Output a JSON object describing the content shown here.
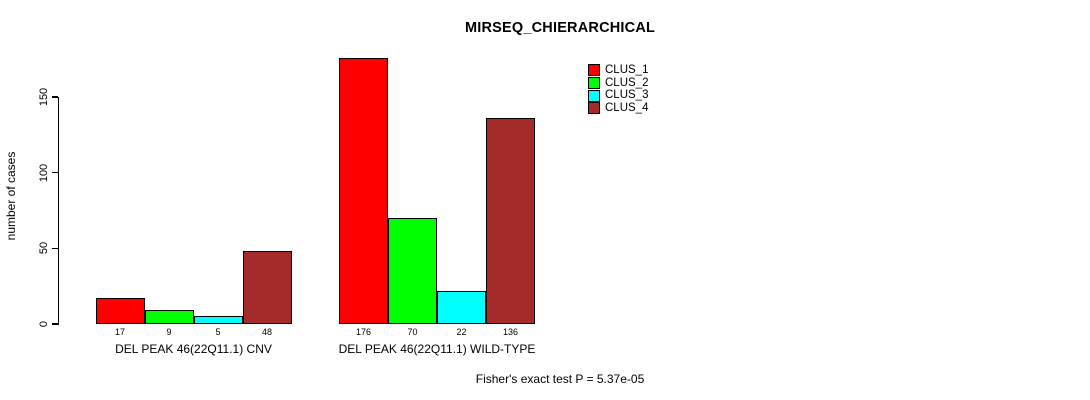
{
  "chart_data": {
    "type": "bar",
    "title": "MIRSEQ_CHIERARCHICAL",
    "ylabel": "number of cases",
    "xlabel": "",
    "ylim": [
      0,
      150
    ],
    "yticks": [
      0,
      50,
      100,
      150
    ],
    "grid": false,
    "bar_value_labels": true,
    "legend_position": "top-right",
    "categories": [
      "DEL PEAK 46(22Q11.1) CNV",
      "DEL PEAK 46(22Q11.1) WILD-TYPE"
    ],
    "series": [
      {
        "name": "CLUS_1",
        "color": "#FF0000",
        "values": [
          17,
          176
        ]
      },
      {
        "name": "CLUS_2",
        "color": "#00FF00",
        "values": [
          9,
          70
        ]
      },
      {
        "name": "CLUS_3",
        "color": "#00FFFF",
        "values": [
          5,
          22
        ]
      },
      {
        "name": "CLUS_4",
        "color": "#A52A2A",
        "values": [
          48,
          136
        ]
      }
    ],
    "annotation": "Fisher's exact test P = 5.37e-05",
    "colors": {
      "axis": "#000000",
      "text": "#000000",
      "background": "#FFFFFF"
    }
  }
}
